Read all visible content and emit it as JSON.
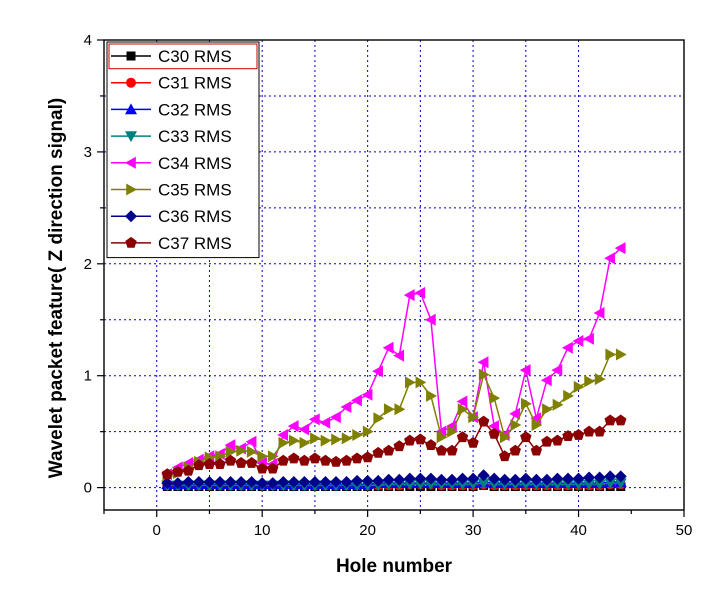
{
  "chart_data": {
    "type": "line",
    "title": "",
    "xlabel": "Hole number",
    "ylabel": "Wavelet packet feature( Z direction signal)",
    "xlim": [
      -5,
      50
    ],
    "ylim": [
      -0.2,
      4
    ],
    "xticks": [
      "0",
      "10",
      "20",
      "30",
      "40",
      "50"
    ],
    "yticks": [
      "0",
      "1",
      "2",
      "3",
      "4"
    ],
    "grid": "dotted-blue",
    "legend_position": "top-left",
    "x": [
      1,
      2,
      3,
      4,
      5,
      6,
      7,
      8,
      9,
      10,
      11,
      12,
      13,
      14,
      15,
      16,
      17,
      18,
      19,
      20,
      21,
      22,
      23,
      24,
      25,
      26,
      27,
      28,
      29,
      30,
      31,
      32,
      33,
      34,
      35,
      36,
      37,
      38,
      39,
      40,
      41,
      42,
      43,
      44
    ],
    "series": [
      {
        "name": "C30 RMS",
        "marker": "square",
        "color": "#000000",
        "values": [
          0.01,
          0.01,
          0.01,
          0.01,
          0.01,
          0.01,
          0.01,
          0.01,
          0.01,
          0.01,
          0.01,
          0.01,
          0.01,
          0.01,
          0.01,
          0.01,
          0.01,
          0.01,
          0.01,
          0.01,
          0.01,
          0.01,
          0.01,
          0.01,
          0.01,
          0.01,
          0.01,
          0.01,
          0.01,
          0.01,
          0.02,
          0.01,
          0.01,
          0.01,
          0.01,
          0.01,
          0.01,
          0.01,
          0.01,
          0.01,
          0.01,
          0.01,
          0.01,
          0.01
        ]
      },
      {
        "name": "C31 RMS",
        "marker": "circle",
        "color": "#ff0000",
        "values": [
          0.02,
          0.02,
          0.02,
          0.02,
          0.02,
          0.02,
          0.02,
          0.02,
          0.02,
          0.02,
          0.02,
          0.02,
          0.02,
          0.02,
          0.02,
          0.02,
          0.02,
          0.02,
          0.02,
          0.02,
          0.02,
          0.02,
          0.02,
          0.03,
          0.03,
          0.03,
          0.02,
          0.02,
          0.02,
          0.02,
          0.03,
          0.02,
          0.02,
          0.02,
          0.02,
          0.02,
          0.02,
          0.02,
          0.02,
          0.02,
          0.02,
          0.02,
          0.03,
          0.03
        ]
      },
      {
        "name": "C32 RMS",
        "marker": "triangle-up",
        "color": "#0000ff",
        "values": [
          0.03,
          0.03,
          0.03,
          0.03,
          0.03,
          0.03,
          0.03,
          0.03,
          0.03,
          0.03,
          0.03,
          0.03,
          0.03,
          0.03,
          0.03,
          0.03,
          0.03,
          0.03,
          0.03,
          0.03,
          0.04,
          0.04,
          0.04,
          0.04,
          0.04,
          0.04,
          0.04,
          0.04,
          0.04,
          0.04,
          0.05,
          0.04,
          0.04,
          0.04,
          0.04,
          0.04,
          0.04,
          0.04,
          0.04,
          0.04,
          0.04,
          0.04,
          0.05,
          0.05
        ]
      },
      {
        "name": "C33 RMS",
        "marker": "triangle-down",
        "color": "#008080",
        "values": [
          0.02,
          0.02,
          0.02,
          0.02,
          0.02,
          0.02,
          0.02,
          0.02,
          0.02,
          0.02,
          0.02,
          0.02,
          0.02,
          0.02,
          0.02,
          0.02,
          0.02,
          0.02,
          0.02,
          0.02,
          0.02,
          0.03,
          0.03,
          0.03,
          0.03,
          0.03,
          0.03,
          0.03,
          0.03,
          0.03,
          0.04,
          0.03,
          0.03,
          0.03,
          0.03,
          0.03,
          0.03,
          0.03,
          0.03,
          0.03,
          0.03,
          0.03,
          0.04,
          0.04
        ]
      },
      {
        "name": "C34 RMS",
        "marker": "triangle-left",
        "color": "#ff00ff",
        "values": [
          0.12,
          0.18,
          0.22,
          0.25,
          0.28,
          0.3,
          0.38,
          0.35,
          0.41,
          0.22,
          0.21,
          0.47,
          0.55,
          0.52,
          0.61,
          0.58,
          0.63,
          0.72,
          0.78,
          0.83,
          1.04,
          1.25,
          1.18,
          1.72,
          1.74,
          1.5,
          0.5,
          0.55,
          0.77,
          0.63,
          1.12,
          0.55,
          0.47,
          0.66,
          1.05,
          0.62,
          0.96,
          1.05,
          1.25,
          1.31,
          1.33,
          1.56,
          2.05,
          2.14
        ]
      },
      {
        "name": "C35 RMS",
        "marker": "triangle-right",
        "color": "#808000",
        "values": [
          0.1,
          0.13,
          0.18,
          0.23,
          0.27,
          0.28,
          0.32,
          0.33,
          0.32,
          0.28,
          0.28,
          0.4,
          0.42,
          0.4,
          0.44,
          0.42,
          0.43,
          0.44,
          0.47,
          0.5,
          0.62,
          0.7,
          0.7,
          0.94,
          0.94,
          0.82,
          0.45,
          0.5,
          0.7,
          0.63,
          1.01,
          0.8,
          0.45,
          0.56,
          0.75,
          0.56,
          0.7,
          0.74,
          0.82,
          0.9,
          0.95,
          0.97,
          1.19,
          1.19
        ]
      },
      {
        "name": "C36 RMS",
        "marker": "diamond",
        "color": "#00008b",
        "values": [
          0.04,
          0.04,
          0.05,
          0.05,
          0.05,
          0.05,
          0.05,
          0.05,
          0.05,
          0.04,
          0.04,
          0.05,
          0.05,
          0.05,
          0.05,
          0.05,
          0.05,
          0.05,
          0.06,
          0.06,
          0.06,
          0.07,
          0.07,
          0.08,
          0.08,
          0.08,
          0.07,
          0.07,
          0.08,
          0.08,
          0.11,
          0.08,
          0.07,
          0.07,
          0.08,
          0.07,
          0.07,
          0.08,
          0.08,
          0.08,
          0.09,
          0.09,
          0.1,
          0.1
        ]
      },
      {
        "name": "C37 RMS",
        "marker": "pentagon",
        "color": "#8b0000",
        "values": [
          0.12,
          0.14,
          0.15,
          0.2,
          0.21,
          0.21,
          0.24,
          0.22,
          0.22,
          0.17,
          0.17,
          0.24,
          0.26,
          0.24,
          0.26,
          0.24,
          0.23,
          0.24,
          0.26,
          0.27,
          0.31,
          0.33,
          0.37,
          0.42,
          0.43,
          0.38,
          0.33,
          0.33,
          0.45,
          0.4,
          0.59,
          0.48,
          0.28,
          0.33,
          0.45,
          0.33,
          0.41,
          0.42,
          0.46,
          0.47,
          0.5,
          0.5,
          0.6,
          0.6
        ]
      }
    ]
  }
}
